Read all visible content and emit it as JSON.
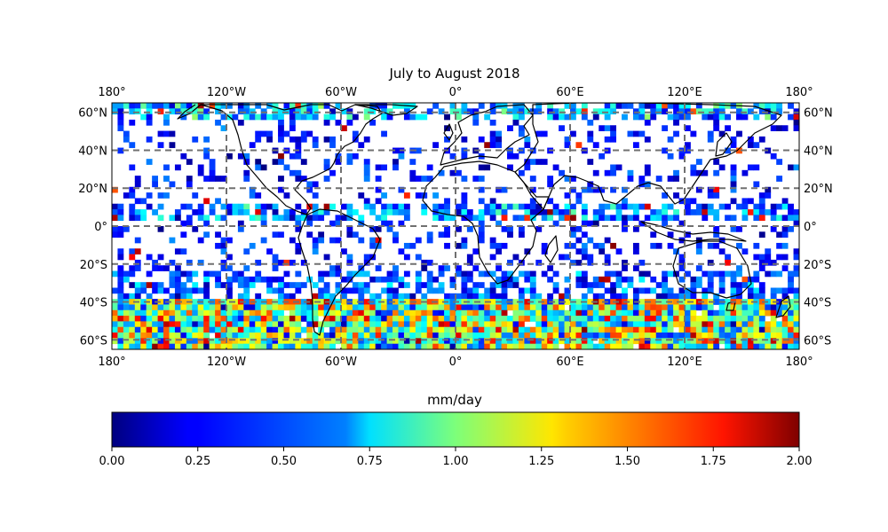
{
  "figure": {
    "title": "July to August 2018"
  },
  "map": {
    "lon_range": [
      -180,
      180
    ],
    "lat_range": [
      -65,
      65
    ],
    "grid_lons": [
      -180,
      -120,
      -60,
      0,
      60,
      120,
      180
    ],
    "grid_lats": [
      60,
      40,
      20,
      0,
      -20,
      -40,
      -60
    ],
    "lon_labels": [
      "180°",
      "120°W",
      "60°W",
      "0°",
      "60°E",
      "120°E",
      "180°"
    ],
    "lat_labels": [
      "60°N",
      "40°N",
      "20°N",
      "0°",
      "20°S",
      "40°S",
      "60°S"
    ],
    "gridlines": "dashed grey",
    "coastlines": true
  },
  "colorbar": {
    "label": "mm/day",
    "range": [
      0,
      2
    ],
    "colormap": "jet",
    "ticks": [
      "0.00",
      "0.25",
      "0.50",
      "0.75",
      "1.00",
      "1.25",
      "1.50",
      "1.75",
      "2.00"
    ],
    "orientation": "horizontal"
  },
  "colors": {
    "gridline": "#707070",
    "coastline": "#000000"
  }
}
